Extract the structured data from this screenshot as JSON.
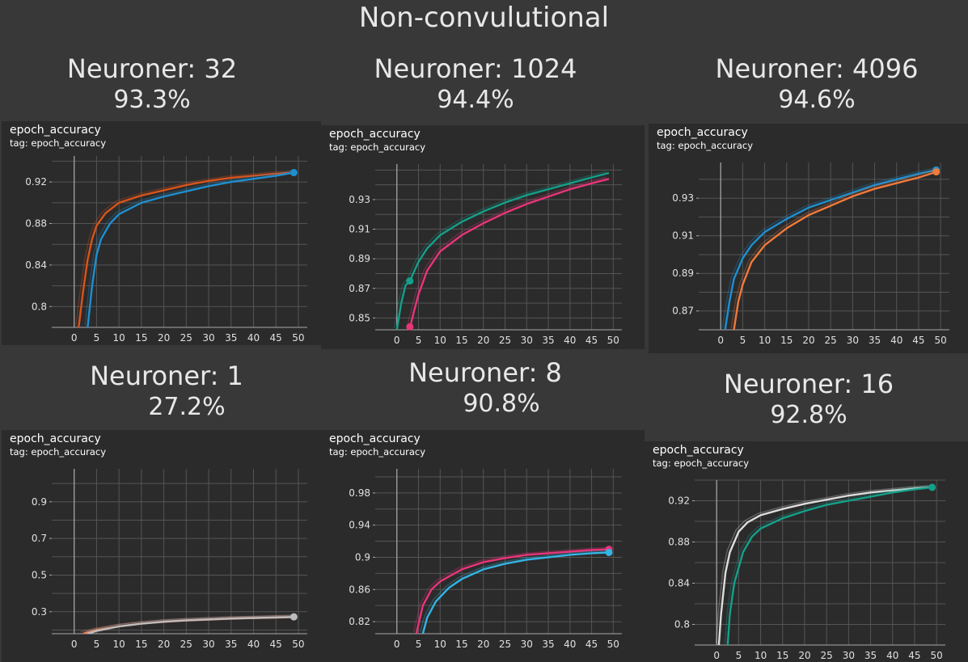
{
  "title": "Non-convulutional",
  "panel_name": "epoch_accuracy",
  "panel_tag": "tag: epoch_accuracy",
  "colors": {
    "blue": "#1f8fd1",
    "orange": "#d9541c",
    "teal": "#14a08a",
    "pink": "#e8357a",
    "orange2": "#f07a3c",
    "salmon": "#f08060",
    "gray": "#bdbdbd",
    "cyan": "#33b5e5",
    "white": "#dddddd",
    "grid": "#555555",
    "axis": "#aaaaaa",
    "text": "#e0e0e0"
  },
  "experiments": [
    {
      "name": "Neuroner: 32",
      "accuracy": "93.3%"
    },
    {
      "name": "Neuroner: 1024",
      "accuracy": "94.4%"
    },
    {
      "name": "Neuroner: 4096",
      "accuracy": "94.6%"
    },
    {
      "name": "Neuroner: 1",
      "accuracy": "27.2%"
    },
    {
      "name": "Neuroner: 8",
      "accuracy": "90.8%"
    },
    {
      "name": "Neuroner: 16",
      "accuracy": "92.8%"
    }
  ],
  "chart_data": [
    {
      "type": "line",
      "title": "epoch_accuracy",
      "xlim": [
        -5,
        52
      ],
      "ylim": [
        0.78,
        0.945
      ],
      "xticks": [
        0,
        5,
        10,
        15,
        20,
        25,
        30,
        35,
        40,
        45,
        50
      ],
      "yticks": [
        0.8,
        0.84,
        0.88,
        0.92
      ],
      "grid": true,
      "series": [
        {
          "color": "orange",
          "x": [
            1,
            2,
            3,
            4,
            5,
            7,
            10,
            15,
            20,
            25,
            30,
            35,
            40,
            45,
            49
          ],
          "y": [
            0.78,
            0.815,
            0.845,
            0.865,
            0.878,
            0.89,
            0.9,
            0.907,
            0.912,
            0.917,
            0.921,
            0.924,
            0.926,
            0.928,
            0.929
          ]
        },
        {
          "color": "blue",
          "x": [
            3,
            4,
            5,
            6,
            8,
            10,
            15,
            20,
            25,
            30,
            35,
            40,
            45,
            49
          ],
          "y": [
            0.78,
            0.82,
            0.85,
            0.865,
            0.88,
            0.889,
            0.9,
            0.906,
            0.911,
            0.916,
            0.92,
            0.923,
            0.926,
            0.929
          ],
          "endpoint": true
        }
      ]
    },
    {
      "type": "line",
      "title": "epoch_accuracy",
      "xlim": [
        -5,
        52
      ],
      "ylim": [
        0.842,
        0.954
      ],
      "xticks": [
        0,
        5,
        10,
        15,
        20,
        25,
        30,
        35,
        40,
        45,
        50
      ],
      "yticks": [
        0.85,
        0.87,
        0.89,
        0.91,
        0.93
      ],
      "grid": true,
      "series": [
        {
          "color": "teal",
          "x": [
            0,
            1,
            2,
            3,
            5,
            7,
            10,
            15,
            20,
            25,
            30,
            35,
            40,
            45,
            49
          ],
          "y": [
            0.842,
            0.86,
            0.872,
            0.875,
            0.888,
            0.897,
            0.906,
            0.915,
            0.922,
            0.928,
            0.933,
            0.937,
            0.941,
            0.945,
            0.948
          ]
        },
        {
          "color": "pink",
          "x": [
            3,
            4,
            5,
            7,
            10,
            15,
            20,
            25,
            30,
            35,
            40,
            45,
            49
          ],
          "y": [
            0.843,
            0.855,
            0.866,
            0.882,
            0.895,
            0.906,
            0.914,
            0.921,
            0.927,
            0.932,
            0.937,
            0.941,
            0.944
          ]
        }
      ],
      "markers": [
        {
          "color": "teal",
          "x": 3,
          "y": 0.875
        },
        {
          "color": "pink",
          "x": 3,
          "y": 0.844
        }
      ]
    },
    {
      "type": "line",
      "title": "epoch_accuracy",
      "xlim": [
        -5,
        52
      ],
      "ylim": [
        0.86,
        0.949
      ],
      "xticks": [
        0,
        5,
        10,
        15,
        20,
        25,
        30,
        35,
        40,
        45,
        50
      ],
      "yticks": [
        0.87,
        0.89,
        0.91,
        0.93
      ],
      "grid": true,
      "series": [
        {
          "color": "blue",
          "x": [
            1,
            2,
            3,
            5,
            7,
            10,
            15,
            20,
            25,
            30,
            35,
            40,
            45,
            49
          ],
          "y": [
            0.86,
            0.875,
            0.887,
            0.898,
            0.905,
            0.912,
            0.919,
            0.925,
            0.929,
            0.933,
            0.937,
            0.94,
            0.943,
            0.945
          ],
          "endpoint": true
        },
        {
          "color": "orange2",
          "x": [
            3,
            4,
            5,
            7,
            10,
            15,
            20,
            25,
            30,
            35,
            40,
            45,
            49
          ],
          "y": [
            0.86,
            0.875,
            0.884,
            0.896,
            0.905,
            0.914,
            0.921,
            0.926,
            0.931,
            0.935,
            0.938,
            0.941,
            0.944
          ],
          "endpoint": true
        }
      ]
    },
    {
      "type": "line",
      "title": "epoch_accuracy",
      "xlim": [
        -5,
        52
      ],
      "ylim": [
        0.18,
        1.08
      ],
      "xticks": [
        0,
        5,
        10,
        15,
        20,
        25,
        30,
        35,
        40,
        45,
        50
      ],
      "yticks": [
        0.3,
        0.5,
        0.7,
        0.9
      ],
      "grid": true,
      "series": [
        {
          "color": "salmon",
          "x": [
            2,
            5,
            10,
            15,
            20,
            25,
            30,
            35,
            40,
            45,
            49
          ],
          "y": [
            0.18,
            0.2,
            0.22,
            0.235,
            0.245,
            0.252,
            0.257,
            0.262,
            0.265,
            0.268,
            0.27
          ]
        },
        {
          "color": "gray",
          "x": [
            3,
            5,
            10,
            15,
            20,
            25,
            30,
            35,
            40,
            45,
            49
          ],
          "y": [
            0.18,
            0.195,
            0.22,
            0.235,
            0.246,
            0.253,
            0.258,
            0.263,
            0.266,
            0.269,
            0.272
          ],
          "endpoint": true
        }
      ]
    },
    {
      "type": "line",
      "title": "epoch_accuracy",
      "xlim": [
        -5,
        52
      ],
      "ylim": [
        0.805,
        1.01
      ],
      "xticks": [
        0,
        5,
        10,
        15,
        20,
        25,
        30,
        35,
        40,
        45,
        50
      ],
      "yticks": [
        0.82,
        0.86,
        0.9,
        0.94,
        0.98
      ],
      "grid": true,
      "series": [
        {
          "color": "pink",
          "x": [
            4.5,
            6,
            8,
            10,
            15,
            20,
            25,
            30,
            35,
            40,
            45,
            49
          ],
          "y": [
            0.805,
            0.84,
            0.86,
            0.87,
            0.885,
            0.894,
            0.899,
            0.903,
            0.905,
            0.907,
            0.909,
            0.91
          ],
          "endpoint": true
        },
        {
          "color": "cyan",
          "x": [
            6,
            7,
            9,
            12,
            15,
            20,
            25,
            30,
            35,
            40,
            45,
            49
          ],
          "y": [
            0.805,
            0.825,
            0.845,
            0.862,
            0.873,
            0.885,
            0.892,
            0.897,
            0.9,
            0.903,
            0.905,
            0.906
          ],
          "endpoint": true
        }
      ]
    },
    {
      "type": "line",
      "title": "epoch_accuracy",
      "xlim": [
        -5,
        52
      ],
      "ylim": [
        0.78,
        0.94
      ],
      "xticks": [
        0,
        5,
        10,
        15,
        20,
        25,
        30,
        35,
        40,
        45,
        50
      ],
      "yticks": [
        0.8,
        0.84,
        0.88,
        0.92
      ],
      "grid": true,
      "series": [
        {
          "color": "white",
          "x": [
            0.5,
            1,
            2,
            3,
            5,
            7,
            10,
            15,
            20,
            25,
            30,
            35,
            40,
            45,
            49
          ],
          "y": [
            0.78,
            0.81,
            0.85,
            0.87,
            0.89,
            0.899,
            0.906,
            0.912,
            0.917,
            0.921,
            0.925,
            0.928,
            0.93,
            0.932,
            0.933
          ]
        },
        {
          "color": "teal",
          "x": [
            2.5,
            3,
            4,
            6,
            8,
            10,
            15,
            20,
            25,
            30,
            35,
            40,
            45,
            49
          ],
          "y": [
            0.78,
            0.81,
            0.84,
            0.87,
            0.885,
            0.893,
            0.903,
            0.91,
            0.916,
            0.92,
            0.924,
            0.928,
            0.931,
            0.933
          ],
          "endpoint": true
        }
      ]
    }
  ]
}
